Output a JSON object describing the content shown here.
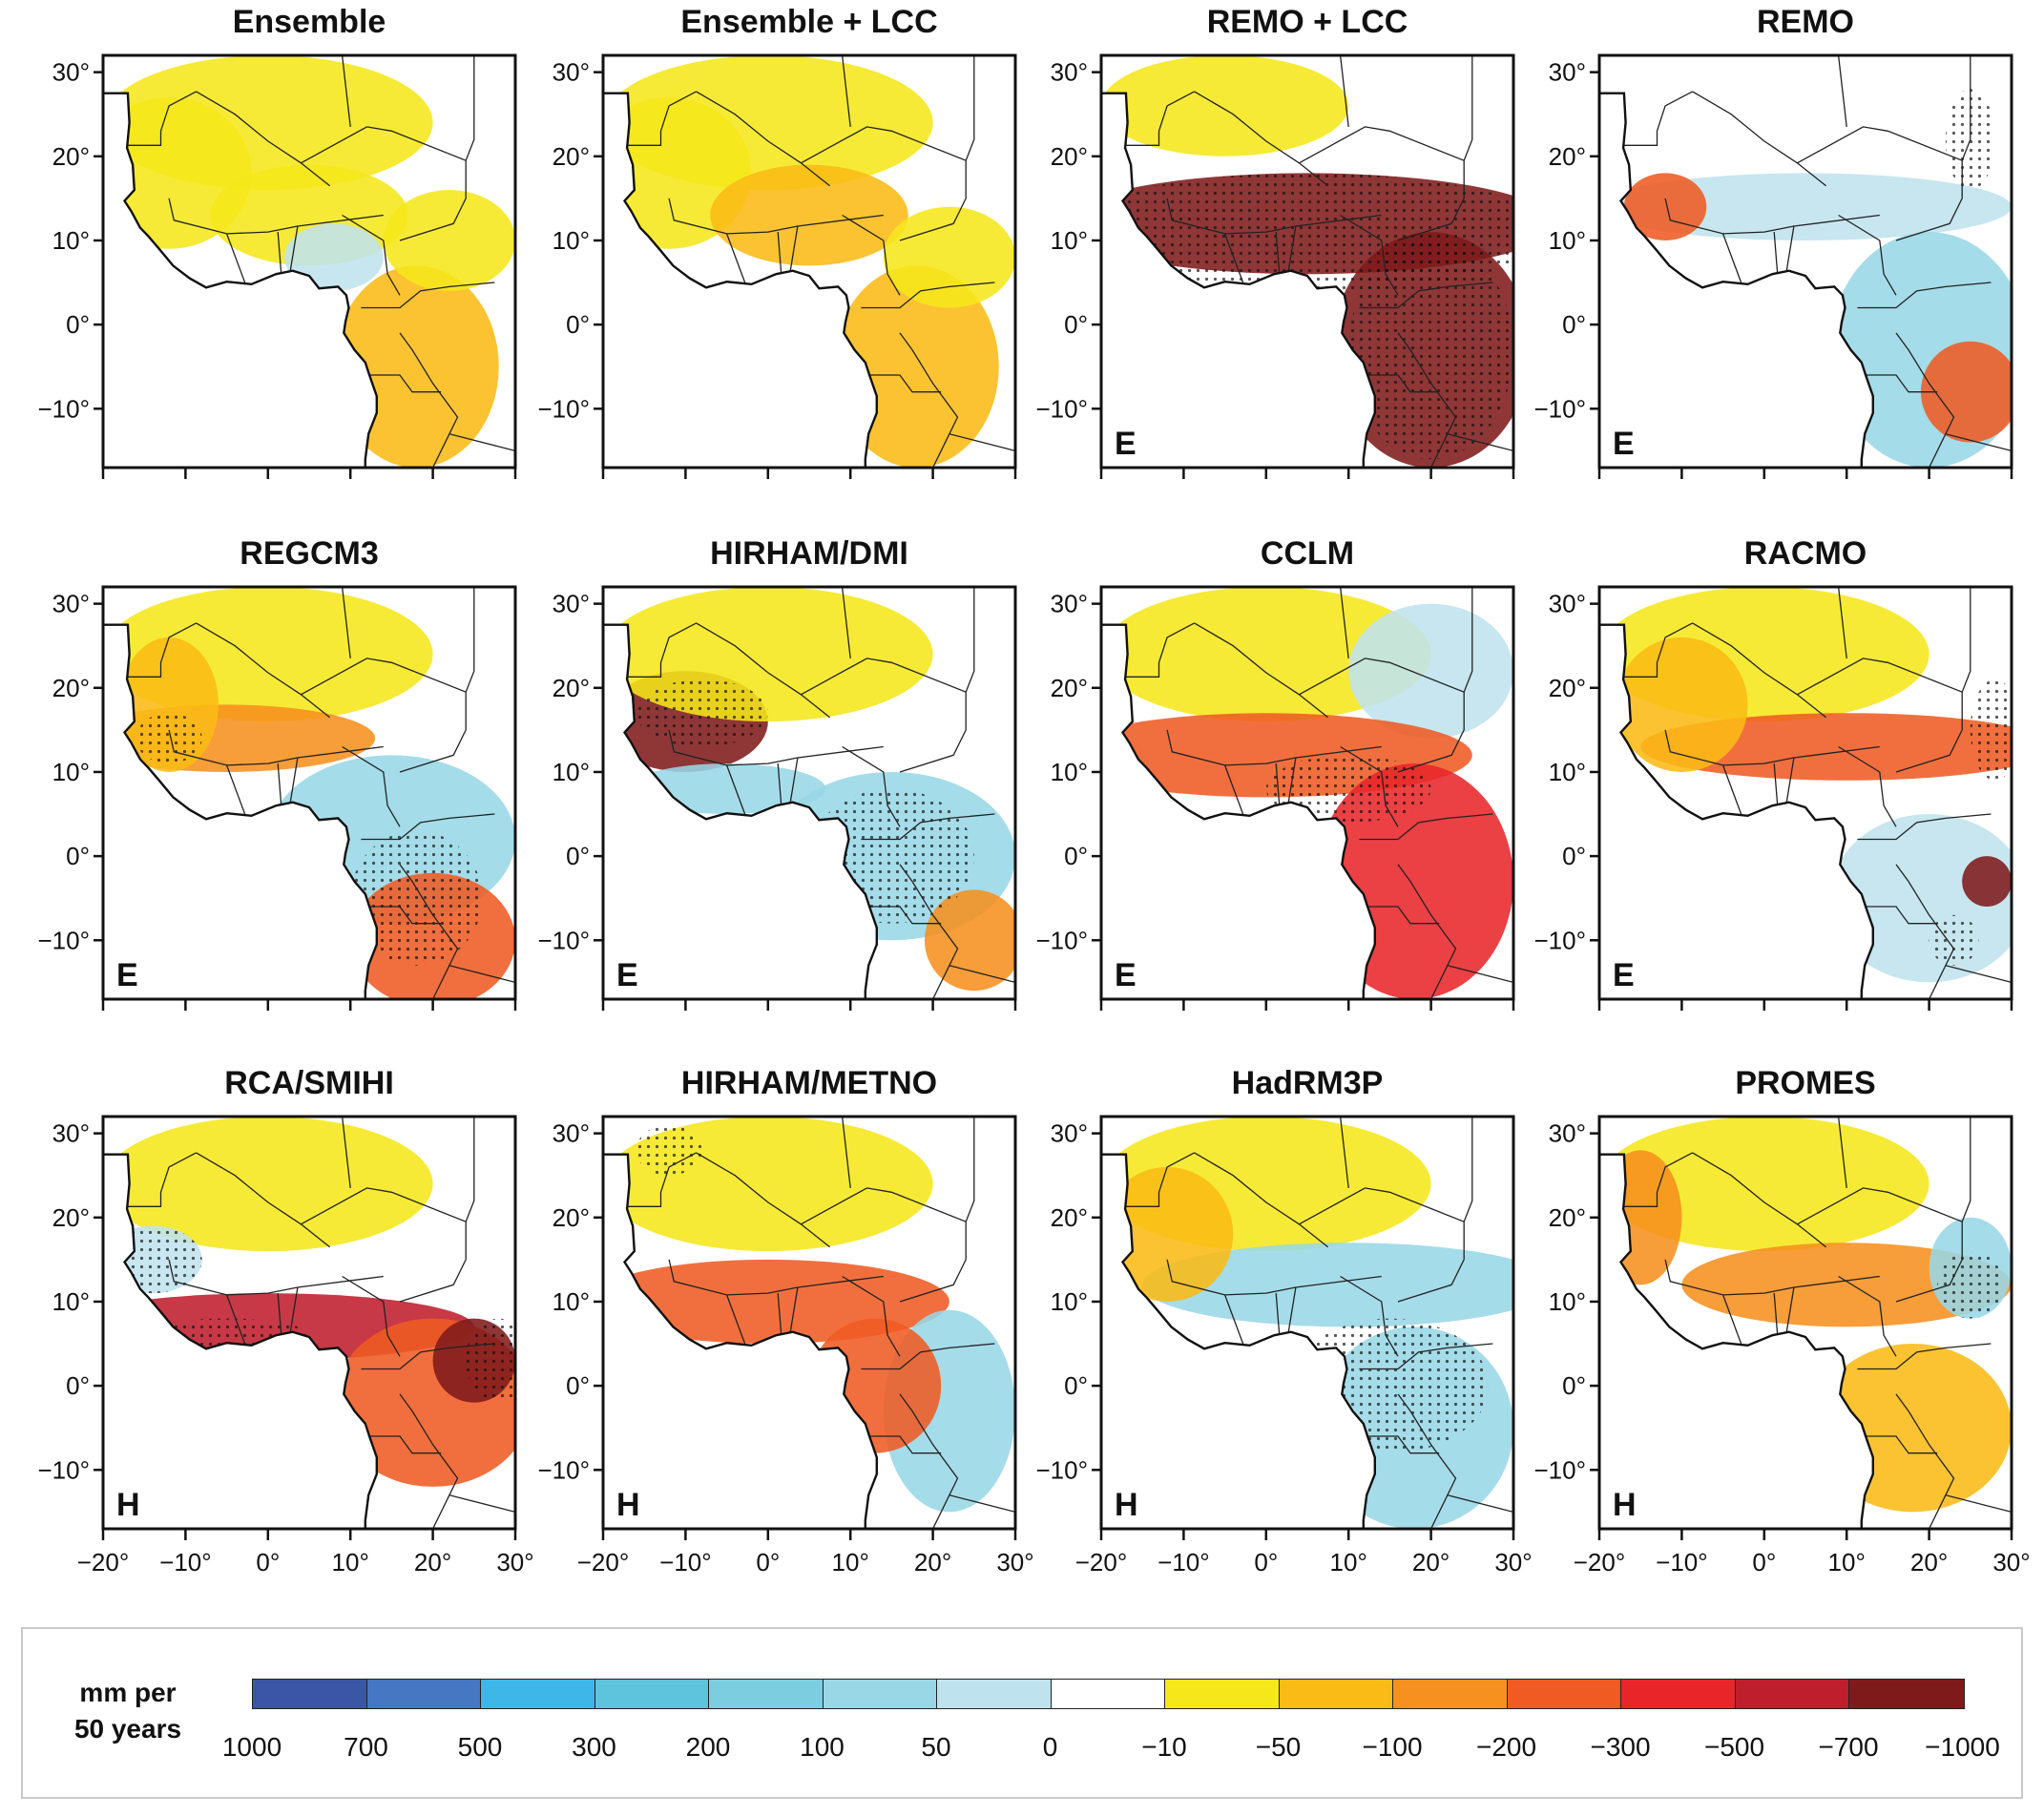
{
  "panels": [
    {
      "title": "Ensemble",
      "code": ""
    },
    {
      "title": "Ensemble + LCC",
      "code": ""
    },
    {
      "title": "REMO + LCC",
      "code": "E"
    },
    {
      "title": "REMO",
      "code": "E"
    },
    {
      "title": "REGCM3",
      "code": "E"
    },
    {
      "title": "HIRHAM/DMI",
      "code": "E"
    },
    {
      "title": "CCLM",
      "code": "E"
    },
    {
      "title": "RACMO",
      "code": "E"
    },
    {
      "title": "RCA/SMIHI",
      "code": "H"
    },
    {
      "title": "HIRHAM/METNO",
      "code": "H"
    },
    {
      "title": "HadRM3P",
      "code": "H"
    },
    {
      "title": "PROMES",
      "code": "H"
    }
  ],
  "map": {
    "lat_ticks": [
      "30°",
      "20°",
      "10°",
      "0°",
      "−10°"
    ],
    "lon_ticks": [
      "−20°",
      "−10°",
      "0°",
      "10°",
      "20°",
      "30°"
    ],
    "lat_range": [
      -17,
      32
    ],
    "lon_range": [
      -20,
      30
    ]
  },
  "legend": {
    "units_line1": "mm per",
    "units_line2": "50 years",
    "tick_labels": [
      "1000",
      "700",
      "500",
      "300",
      "200",
      "100",
      "50",
      "0",
      "−10",
      "−50",
      "−100",
      "−200",
      "−300",
      "−500",
      "−700",
      "−1000"
    ],
    "colors": [
      "#3b56a6",
      "#4677c2",
      "#3db7e8",
      "#5ec3dc",
      "#7dcde1",
      "#99d7e6",
      "#bfe3ee",
      "#ffffff",
      "#f5e71a",
      "#fbbb16",
      "#f6901e",
      "#ef5b23",
      "#e8262a",
      "#bf1e2d",
      "#7f1a1b"
    ]
  },
  "colors": {
    "desert_yellow": "#f5e71a",
    "orange": "#fbbb16",
    "deep_red": "#7f1a1b",
    "light_blue": "#bfe3ee",
    "blue": "#5ec3dc"
  }
}
